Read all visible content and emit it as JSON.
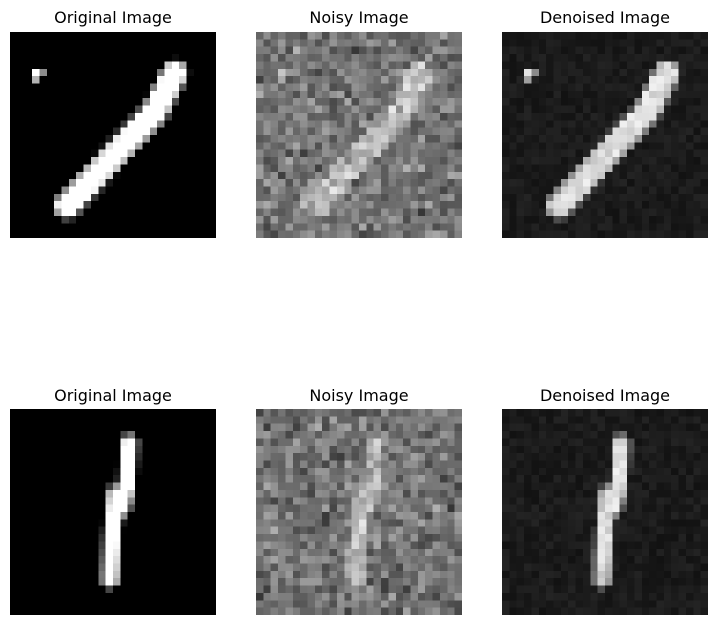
{
  "rows": [
    {
      "panels": [
        {
          "title": "Original Image",
          "kind": "original",
          "digit": "slant",
          "seed": 11
        },
        {
          "title": "Noisy Image",
          "kind": "noisy",
          "digit": "slant",
          "seed": 23
        },
        {
          "title": "Denoised Image",
          "kind": "denoised",
          "digit": "slant",
          "seed": 37
        }
      ]
    },
    {
      "panels": [
        {
          "title": "Original Image",
          "kind": "original",
          "digit": "one",
          "seed": 41
        },
        {
          "title": "Noisy Image",
          "kind": "noisy",
          "digit": "one",
          "seed": 53
        },
        {
          "title": "Denoised Image",
          "kind": "denoised",
          "digit": "one",
          "seed": 67
        }
      ]
    }
  ]
}
